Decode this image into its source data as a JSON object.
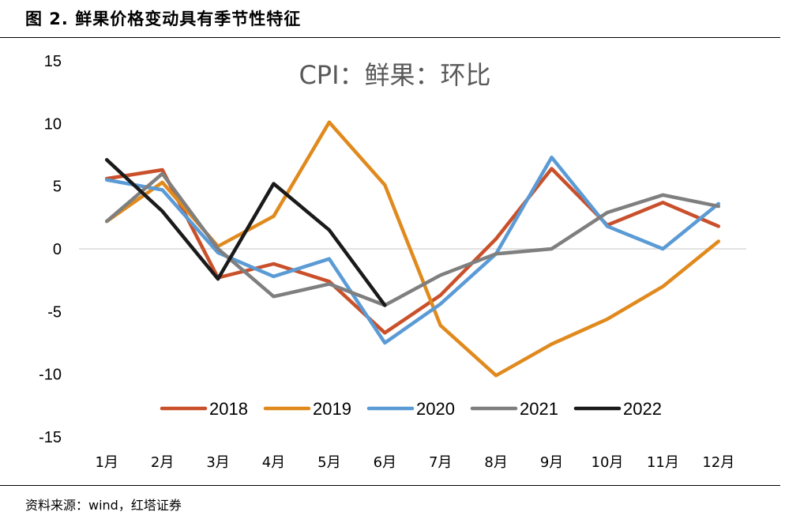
{
  "figure": {
    "title": "图 2. 鲜果价格变动具有季节性特征",
    "source": "资料来源：wind，红塔证券"
  },
  "chart_data": {
    "type": "line",
    "title": "CPI：鲜果：环比",
    "categories": [
      "1月",
      "2月",
      "3月",
      "4月",
      "5月",
      "6月",
      "7月",
      "8月",
      "9月",
      "10月",
      "11月",
      "12月"
    ],
    "ylim": [
      -15,
      15
    ],
    "yticks": [
      15,
      10,
      5,
      0,
      -5,
      -10,
      -15
    ],
    "grid": false,
    "zero_line": true,
    "legend_position": "bottom-center",
    "series": [
      {
        "name": "2018",
        "color": "#C9502A",
        "values": [
          5.6,
          6.3,
          -2.3,
          -1.2,
          -2.6,
          -6.7,
          -3.7,
          0.8,
          6.4,
          1.9,
          3.7,
          1.8
        ]
      },
      {
        "name": "2019",
        "color": "#E08A1E",
        "values": [
          2.2,
          5.3,
          0.2,
          2.6,
          10.1,
          5.1,
          -6.1,
          -10.1,
          -7.6,
          -5.6,
          -3.0,
          0.6
        ]
      },
      {
        "name": "2020",
        "color": "#5B9BD5",
        "values": [
          5.5,
          4.7,
          -0.3,
          -2.2,
          -0.8,
          -7.5,
          -4.4,
          -0.4,
          7.3,
          1.8,
          0.0,
          3.6
        ]
      },
      {
        "name": "2021",
        "color": "#7F7F7F",
        "values": [
          2.2,
          6.0,
          0.0,
          -3.8,
          -2.8,
          -4.5,
          -2.1,
          -0.4,
          0.0,
          2.9,
          4.3,
          3.4
        ]
      },
      {
        "name": "2022",
        "color": "#1A1A1A",
        "values": [
          7.1,
          3.0,
          -2.4,
          5.2,
          1.5,
          -4.5,
          null,
          null,
          null,
          null,
          null,
          null
        ]
      }
    ]
  }
}
